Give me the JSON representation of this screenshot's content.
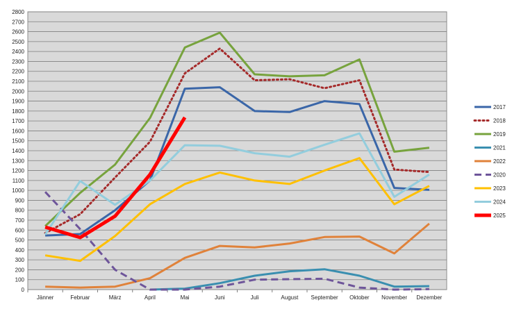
{
  "chart_data": {
    "type": "line",
    "title": "",
    "xlabel": "",
    "ylabel": "",
    "ylim": [
      0,
      2800
    ],
    "y_tick_step": 100,
    "grid": "horizontal",
    "plot_background": "#d9d9d9",
    "legend_position": "right",
    "categories": [
      "Jänner",
      "Februar",
      "März",
      "April",
      "Mai",
      "Juni",
      "Juli",
      "August",
      "September",
      "Oktober",
      "November",
      "Dezember"
    ],
    "series": [
      {
        "name": "2017",
        "color": "#3a66a8",
        "style": "solid",
        "width": 3,
        "values": [
          545,
          560,
          800,
          1100,
          2025,
          2040,
          1800,
          1790,
          1900,
          1870,
          1025,
          1005
        ]
      },
      {
        "name": "2018",
        "color": "#a52a2a",
        "style": "dotted",
        "width": 3,
        "values": [
          570,
          760,
          1130,
          1490,
          2180,
          2430,
          2110,
          2120,
          2030,
          2110,
          1210,
          1185
        ]
      },
      {
        "name": "2019",
        "color": "#77a33d",
        "style": "solid",
        "width": 3,
        "values": [
          640,
          975,
          1260,
          1730,
          2440,
          2590,
          2170,
          2150,
          2160,
          2320,
          1390,
          1430
        ]
      },
      {
        "name": "2021",
        "color": "#3a8fb0",
        "style": "solid",
        "width": 3,
        "values": [
          null,
          null,
          null,
          0,
          10,
          65,
          140,
          185,
          205,
          140,
          30,
          35
        ]
      },
      {
        "name": "2022",
        "color": "#e0823a",
        "style": "solid",
        "width": 3,
        "values": [
          30,
          20,
          30,
          115,
          320,
          440,
          425,
          465,
          530,
          535,
          365,
          665
        ]
      },
      {
        "name": "2020",
        "color": "#6e559a",
        "style": "dashed",
        "width": 3,
        "values": [
          985,
          610,
          200,
          0,
          0,
          30,
          100,
          105,
          110,
          20,
          0,
          5
        ]
      },
      {
        "name": "2023",
        "color": "#ffc000",
        "style": "solid",
        "width": 3,
        "values": [
          345,
          290,
          540,
          860,
          1065,
          1180,
          1100,
          1065,
          1200,
          1325,
          860,
          1045
        ]
      },
      {
        "name": "2024",
        "color": "#93cddd",
        "style": "solid",
        "width": 3,
        "values": [
          555,
          1095,
          855,
          1100,
          1455,
          1450,
          1375,
          1340,
          1460,
          1575,
          935,
          1160
        ]
      },
      {
        "name": "2025",
        "color": "#ff0000",
        "style": "solid",
        "width": 5,
        "values": [
          630,
          525,
          740,
          1160,
          1735,
          null,
          null,
          null,
          null,
          null,
          null,
          null
        ]
      }
    ]
  }
}
